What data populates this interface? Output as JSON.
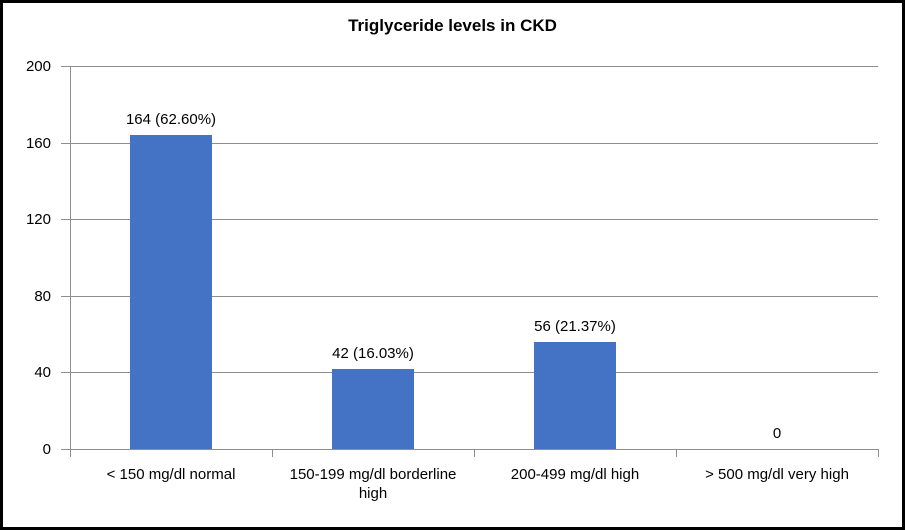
{
  "chart": {
    "title": "Triglyceride levels in CKD"
  },
  "chart_data": {
    "type": "bar",
    "title": "Triglyceride levels in CKD",
    "categories": [
      "< 150 mg/dl normal",
      "150-199 mg/dl borderline high",
      "200-499 mg/dl high",
      "> 500 mg/dl very high"
    ],
    "values": [
      164,
      42,
      56,
      0
    ],
    "data_labels": [
      "164 (62.60%)",
      "42 (16.03%)",
      "56 (21.37%)",
      "0"
    ],
    "xlabel": "",
    "ylabel": "",
    "ylim": [
      0,
      200
    ],
    "yticks": [
      0,
      40,
      80,
      120,
      160,
      200
    ],
    "grid": true,
    "legend": false,
    "legend_position": "none",
    "bar_color": "#4472C4",
    "gridline_color": "#8E8E8E",
    "axis_color": "#8E8E8E",
    "text_color": "#000000",
    "background_color": "#FFFFFF",
    "border_color": "#000000"
  }
}
